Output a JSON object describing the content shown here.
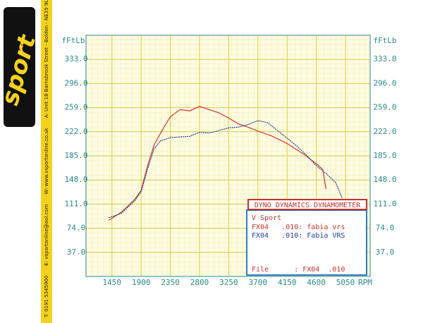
{
  "chart_data": {
    "type": "line",
    "y_label": "fFtLb",
    "x_label": "RPM",
    "xlim": [
      1050,
      5430
    ],
    "ylim": [
      0,
      370
    ],
    "xticks": [
      1450,
      1900,
      2350,
      2800,
      3250,
      3700,
      4150,
      4600,
      5050
    ],
    "yticks": [
      {
        "value": 37,
        "label": "37.0"
      },
      {
        "value": 74,
        "label": "74.0"
      },
      {
        "value": 111,
        "label": "111.0"
      },
      {
        "value": 148,
        "label": "148.0"
      },
      {
        "value": 185,
        "label": "185.0"
      },
      {
        "value": 222,
        "label": "222.0"
      },
      {
        "value": 259,
        "label": "259.0"
      },
      {
        "value": 296,
        "label": "296.0"
      },
      {
        "value": 333,
        "label": "333.0"
      }
    ],
    "grid": true,
    "series": [
      {
        "name": "FX04   .010: fabia vrs",
        "color": "#d8332c",
        "x": [
          1400,
          1600,
          1800,
          1900,
          2000,
          2100,
          2200,
          2350,
          2500,
          2650,
          2800,
          2950,
          3100,
          3250,
          3400,
          3550,
          3700,
          3900,
          4150,
          4400,
          4600,
          4700,
          4750
        ],
        "values": [
          86,
          99,
          118,
          132,
          170,
          202,
          220,
          245,
          256,
          254,
          261,
          256,
          251,
          243,
          234,
          229,
          223,
          216,
          204,
          188,
          173,
          164,
          134
        ]
      },
      {
        "name": "FX04   .010: Fabia VRS",
        "color": "#1f3f9e",
        "x": [
          1400,
          1600,
          1800,
          1900,
          2000,
          2100,
          2200,
          2350,
          2500,
          2650,
          2800,
          2950,
          3100,
          3250,
          3400,
          3550,
          3700,
          3850,
          4000,
          4150,
          4300,
          4450,
          4600,
          4750,
          4900,
          5000
        ],
        "values": [
          90,
          97,
          116,
          130,
          165,
          196,
          208,
          213,
          214,
          215,
          221,
          220,
          224,
          228,
          229,
          233,
          239,
          236,
          224,
          212,
          200,
          186,
          170,
          158,
          144,
          120
        ]
      }
    ],
    "legend": {
      "title": "DYNO DYNAMICS DYNAMOMETER",
      "heading": "V Sport",
      "file": "File      : FX04  .010"
    }
  },
  "branding": {
    "logo": "sport",
    "contacts": [
      "T: 0191 5345900",
      "E: vsportonline@aol.com",
      "W: www.vsportonline.co.uk",
      "A: Unit 18 Barnsbrook Street - Boldon - NE35 9LN"
    ]
  }
}
